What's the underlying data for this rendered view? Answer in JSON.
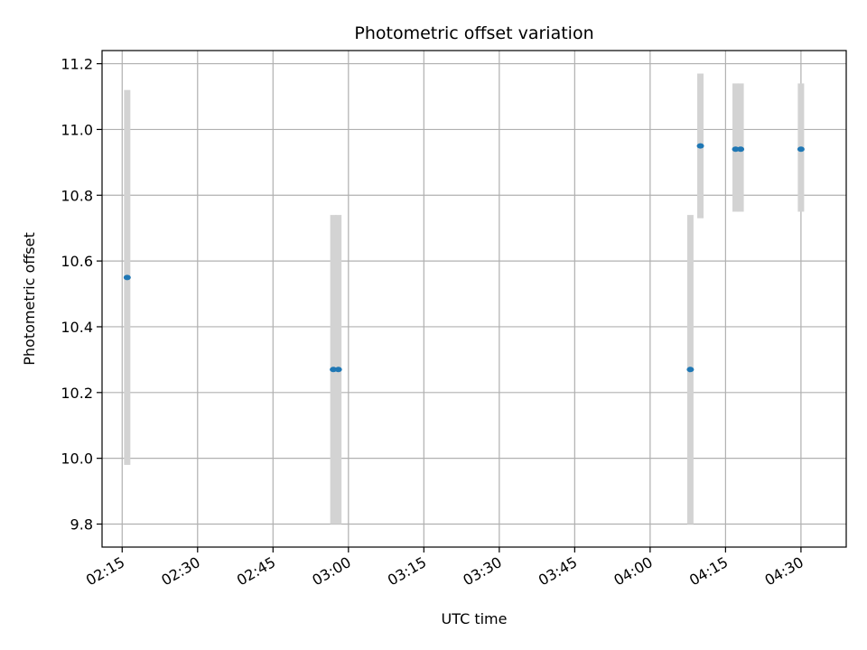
{
  "chart_data": {
    "type": "scatter",
    "title": "Photometric offset variation",
    "xlabel": "UTC time",
    "ylabel": "Photometric offset",
    "xlim": [
      "02:11",
      "04:39"
    ],
    "ylim": [
      9.73,
      11.24
    ],
    "xticks": [
      "02:15",
      "02:30",
      "02:45",
      "03:00",
      "03:15",
      "03:30",
      "03:45",
      "04:00",
      "04:15",
      "04:30"
    ],
    "yticks": [
      9.8,
      10.0,
      10.2,
      10.4,
      10.6,
      10.8,
      11.0,
      11.2
    ],
    "grid": true,
    "colors": {
      "point": "#1f77b4",
      "error_bar": "#d3d3d3",
      "grid": "#b0b0b0"
    },
    "points": [
      {
        "x": "02:16",
        "y": 10.55,
        "ylow": 9.98,
        "yhigh": 11.12
      },
      {
        "x": "02:57",
        "y": 10.27,
        "ylow": 9.8,
        "yhigh": 10.74
      },
      {
        "x": "02:58",
        "y": 10.27,
        "ylow": 9.8,
        "yhigh": 10.74
      },
      {
        "x": "04:08",
        "y": 10.27,
        "ylow": 9.8,
        "yhigh": 10.74
      },
      {
        "x": "04:10",
        "y": 10.95,
        "ylow": 10.73,
        "yhigh": 11.17
      },
      {
        "x": "04:17",
        "y": 10.94,
        "ylow": 10.75,
        "yhigh": 11.14
      },
      {
        "x": "04:18",
        "y": 10.94,
        "ylow": 10.75,
        "yhigh": 11.14
      },
      {
        "x": "04:30",
        "y": 10.94,
        "ylow": 10.75,
        "yhigh": 11.14
      }
    ]
  }
}
